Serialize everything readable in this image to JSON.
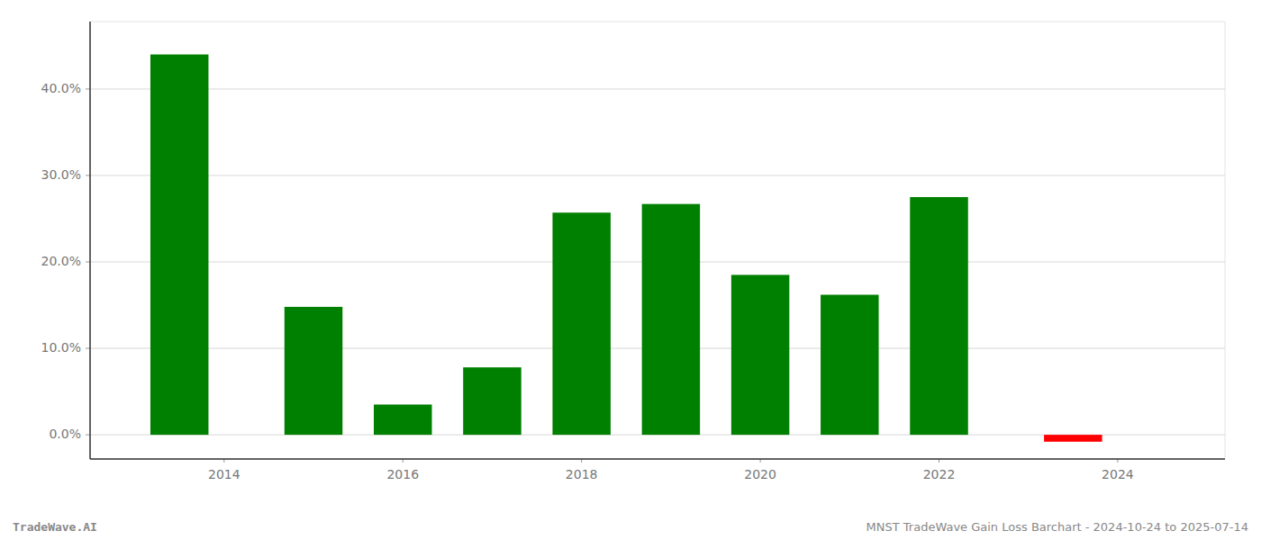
{
  "chart_data": {
    "type": "bar",
    "x": [
      2013.5,
      2015.0,
      2016.0,
      2017.0,
      2018.0,
      2019.0,
      2020.0,
      2021.0,
      2022.0,
      2023.5
    ],
    "values": [
      0.44,
      0.148,
      0.035,
      0.078,
      0.257,
      0.267,
      0.185,
      0.162,
      0.275,
      -0.008
    ],
    "colors": [
      "#008000",
      "#008000",
      "#008000",
      "#008000",
      "#008000",
      "#008000",
      "#008000",
      "#008000",
      "#008000",
      "#ff0000"
    ],
    "xlim": [
      2012.5,
      2025.2
    ],
    "ylim": [
      -0.028,
      0.478
    ],
    "xticks": [
      2014,
      2016,
      2018,
      2020,
      2022,
      2024
    ],
    "yticks": [
      {
        "value": 0.0,
        "label": "0.0%"
      },
      {
        "value": 0.1,
        "label": "10.0%"
      },
      {
        "value": 0.2,
        "label": "20.0%"
      },
      {
        "value": 0.3,
        "label": "30.0%"
      },
      {
        "value": 0.4,
        "label": "40.0%"
      }
    ],
    "grid": true,
    "annotations": [
      "TradeWave.AI",
      "MNST TradeWave Gain Loss Barchart - 2024-10-24 to 2025-07-14"
    ]
  }
}
